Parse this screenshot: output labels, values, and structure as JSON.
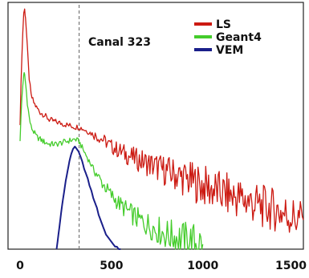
{
  "chart_data": {
    "type": "line",
    "title": "",
    "xlabel": "",
    "ylabel": "",
    "xlim": [
      0,
      1550
    ],
    "ylim": [
      0,
      100
    ],
    "xticks": [
      0,
      500,
      1000,
      1500
    ],
    "grid": false,
    "legend_position": "top-right",
    "annotation": {
      "text": "Canal 323",
      "x": 323
    },
    "series": [
      {
        "name": "LS",
        "color": "#cc1a12",
        "x": [
          0,
          10,
          20,
          25,
          30,
          40,
          50,
          60,
          75,
          90,
          110,
          130,
          160,
          200,
          250,
          300,
          323,
          350,
          400,
          450,
          500,
          600,
          700,
          800,
          900,
          1000,
          1100,
          1200,
          1300,
          1400,
          1500,
          1550
        ],
        "y": [
          52,
          80,
          97,
          98,
          95,
          82,
          70,
          63,
          60,
          58,
          56,
          55,
          53,
          52,
          51,
          50,
          50,
          49,
          47,
          45,
          42,
          38,
          35,
          32,
          29,
          26,
          23,
          21,
          18,
          16,
          13,
          12
        ]
      },
      {
        "name": "Geant4",
        "color": "#44cc2b",
        "x": [
          0,
          10,
          20,
          25,
          30,
          40,
          50,
          60,
          75,
          90,
          110,
          130,
          160,
          200,
          250,
          300,
          323,
          350,
          400,
          450,
          500,
          550,
          600,
          650,
          700,
          750,
          800,
          850,
          900,
          950,
          1000
        ],
        "y": [
          45,
          62,
          72,
          71,
          68,
          60,
          54,
          50,
          48,
          46,
          45,
          44,
          43,
          43,
          44,
          45,
          44,
          40,
          33,
          27,
          22,
          18,
          15,
          12,
          10,
          8,
          6,
          5,
          4,
          3,
          2
        ]
      },
      {
        "name": "VEM",
        "color": "#1a1f8a",
        "x": [
          200,
          210,
          220,
          230,
          240,
          250,
          260,
          270,
          280,
          290,
          300,
          310,
          320,
          330,
          340,
          350,
          360,
          370,
          380,
          390,
          400,
          410,
          420,
          430,
          440,
          450,
          460,
          470,
          480,
          490,
          500,
          510,
          520,
          530,
          540,
          550
        ],
        "y": [
          0,
          6,
          12,
          18,
          23,
          28,
          32,
          36,
          39,
          41,
          42,
          41,
          40,
          38,
          36,
          33,
          31,
          29,
          26,
          24,
          21,
          19,
          17,
          14,
          12,
          10,
          8,
          6,
          5,
          4,
          3,
          2,
          1,
          1,
          0,
          0
        ]
      }
    ]
  }
}
